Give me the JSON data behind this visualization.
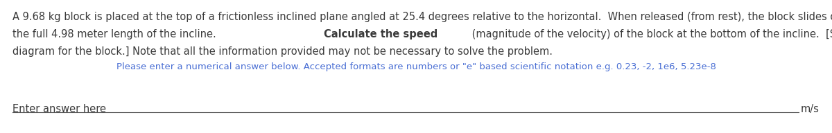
{
  "bg_color": "#ffffff",
  "line1": "A 9.68 kg block is placed at the top of a frictionless inclined plane angled at 25.4 degrees relative to the horizontal.  When released (from rest), the block slides down",
  "line2_before": "the full 4.98 meter length of the incline.  ",
  "line2_bold": "Calculate the speed",
  "line2_after": " (magnitude of the velocity) of the block at the bottom of the incline.  [Start by drawing a free-body",
  "line3": "diagram for the block.] Note that all the information provided may not be necessary to solve the problem.",
  "sub_text": "Please enter a numerical answer below. Accepted formats are numbers or \"e\" based scientific notation e.g. 0.23, -2, 1e6, 5.23e-8",
  "sub_text_color": "#4a6fd4",
  "input_label": "Enter answer here",
  "unit_label": "m/s",
  "main_font_size": 10.5,
  "sub_font_size": 9.5,
  "input_font_size": 10.5,
  "text_color": "#3a3a3a",
  "line_color": "#555555"
}
